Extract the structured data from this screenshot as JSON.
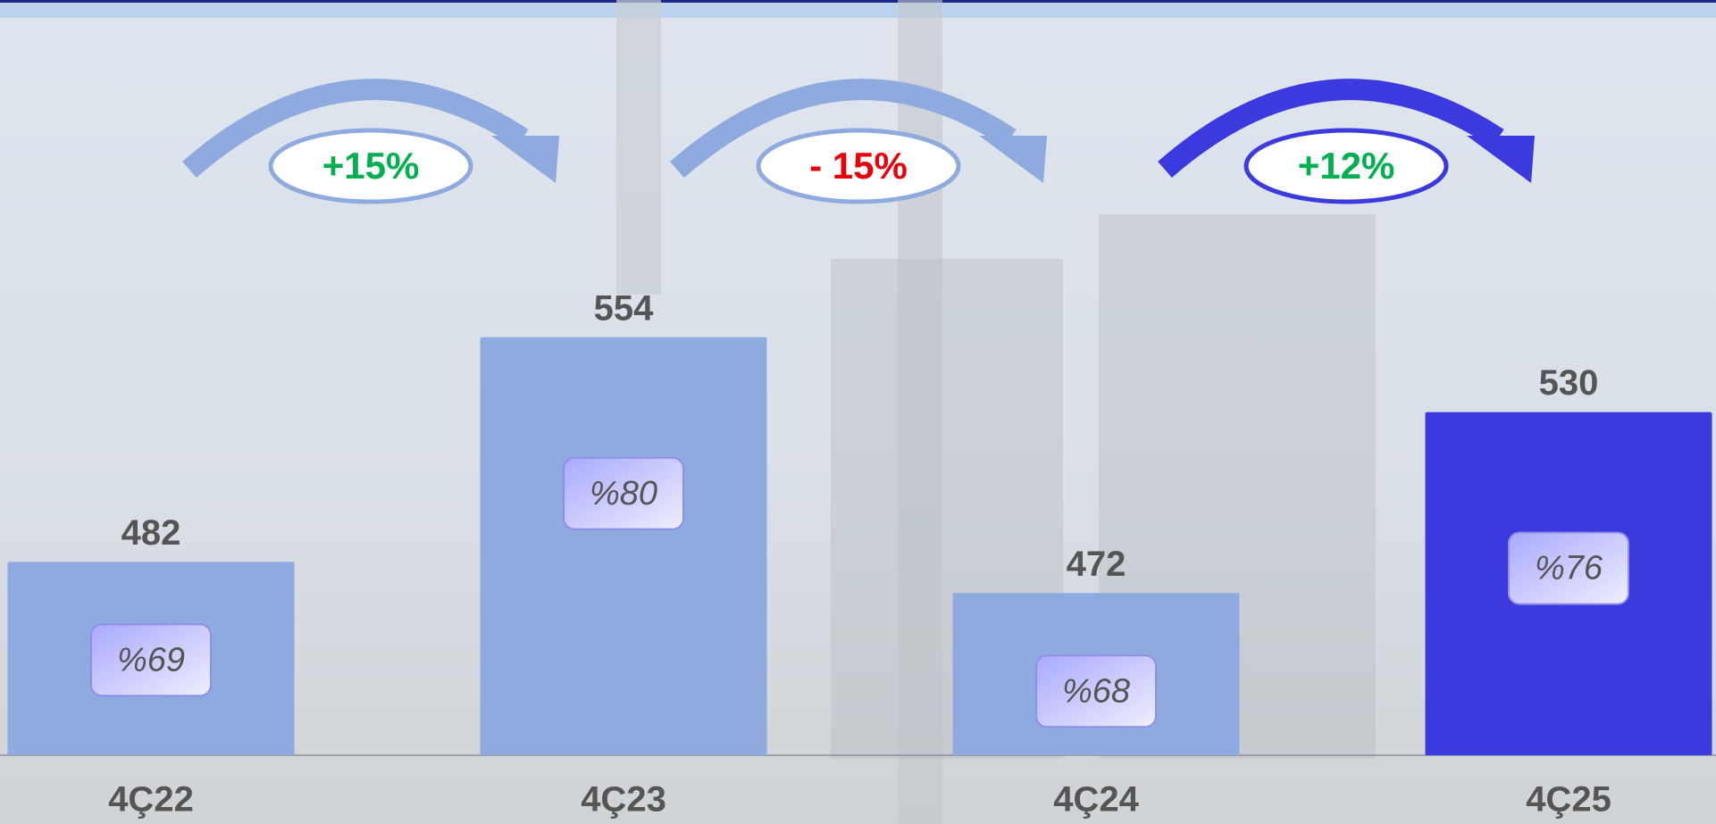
{
  "chart_data": {
    "type": "bar",
    "categories": [
      "4Ç22",
      "4Ç23",
      "4Ç24",
      "4Ç25"
    ],
    "values": [
      482,
      554,
      472,
      530
    ],
    "colors": [
      "#8faadf",
      "#8faadf",
      "#8faadf",
      "#3a3adf"
    ],
    "inner_labels": [
      "%69",
      "%80",
      "%68",
      "%76"
    ],
    "changes": [
      {
        "label": "+15%",
        "text_color": "#00b050",
        "arrow_color": "#8faadf"
      },
      {
        "label": "- 15%",
        "text_color": "#e8000b",
        "arrow_color": "#8faadf"
      },
      {
        "label": "+12%",
        "text_color": "#00b050",
        "arrow_color": "#3a3adf"
      }
    ],
    "ylim": [
      420,
      600
    ]
  }
}
